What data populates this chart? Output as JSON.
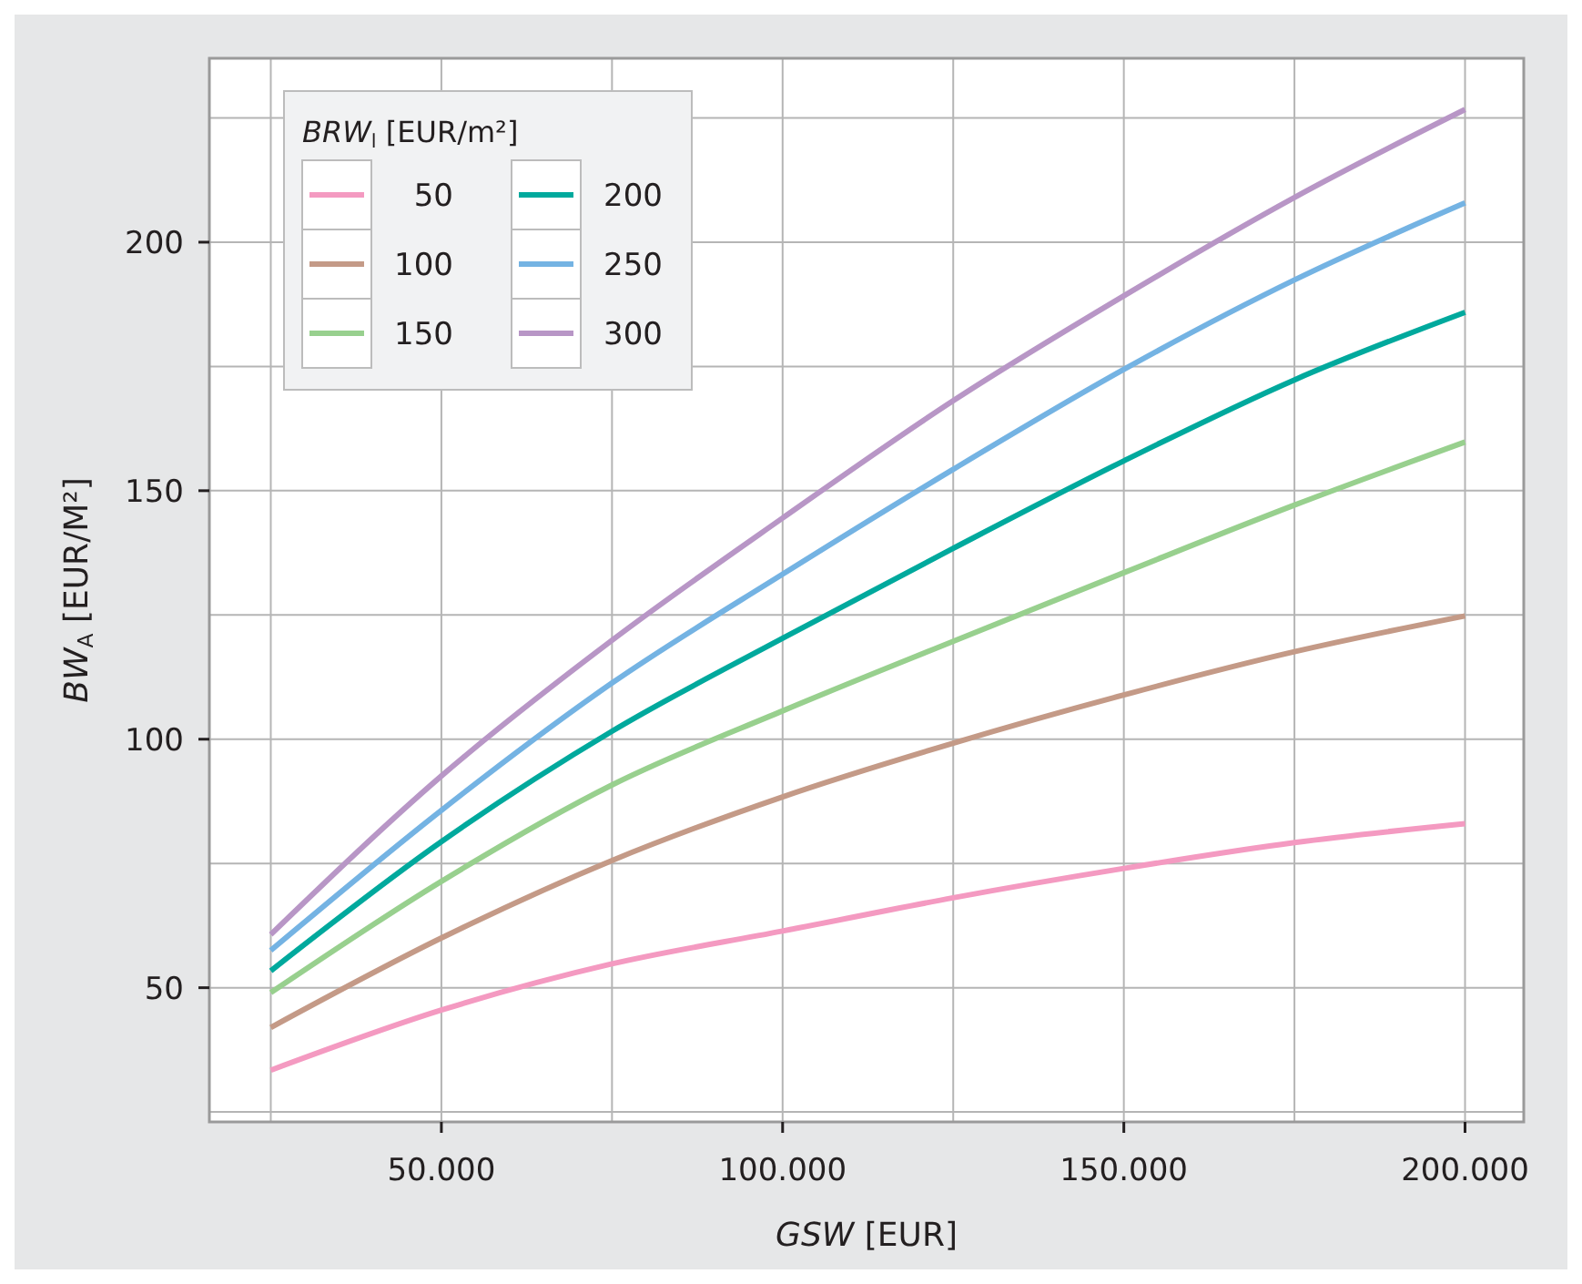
{
  "chart_data": {
    "type": "line",
    "xlabel": "GSW [EUR]",
    "ylabel": "BW$_{A}$ [EUR/M²]",
    "legend_title": "BRW$_{l}$ [EUR/m²]",
    "x": [
      25000,
      50000,
      75000,
      100000,
      125000,
      150000,
      175000,
      200000
    ],
    "series": [
      {
        "name": "50",
        "color": "#f49ac1",
        "values": [
          33.4,
          45.5,
          54.8,
          61.4,
          68.1,
          74,
          79.2,
          83
        ]
      },
      {
        "name": "100",
        "color": "#c49a87",
        "values": [
          42,
          60,
          75.6,
          88.4,
          99.2,
          108.9,
          117.6,
          124.8
        ]
      },
      {
        "name": "150",
        "color": "#98d08e",
        "values": [
          49,
          71.4,
          90.8,
          105.7,
          119.7,
          133.5,
          147.1,
          159.8
        ]
      },
      {
        "name": "200",
        "color": "#00a99d",
        "values": [
          53.4,
          79.4,
          101.6,
          120.3,
          138.4,
          156,
          172.3,
          185.9
        ]
      },
      {
        "name": "250",
        "color": "#74b3e3",
        "values": [
          57.5,
          85.7,
          111.3,
          133.2,
          154.3,
          174.4,
          192.4,
          207.9
        ]
      },
      {
        "name": "300",
        "color": "#b896c6",
        "values": [
          60.7,
          92.6,
          119.9,
          144.5,
          168.1,
          189.2,
          209,
          226.7
        ]
      }
    ],
    "xlim": [
      16000,
      208600
    ],
    "ylim": [
      23,
      237
    ],
    "xticks": [
      {
        "value": 25000,
        "label": null
      },
      {
        "value": 50000,
        "label": "50.000"
      },
      {
        "value": 75000,
        "label": null
      },
      {
        "value": 100000,
        "label": "100.000"
      },
      {
        "value": 125000,
        "label": null
      },
      {
        "value": 150000,
        "label": "150.000"
      },
      {
        "value": 175000,
        "label": null
      },
      {
        "value": 200000,
        "label": "200.000"
      }
    ],
    "yticks": [
      {
        "value": 25,
        "label": null
      },
      50,
      {
        "value": 75,
        "label": null
      },
      100,
      {
        "value": 125,
        "label": null
      },
      150,
      {
        "value": 175,
        "label": null
      },
      200,
      {
        "value": 225,
        "label": null
      }
    ],
    "grid": true,
    "legend": "top left",
    "marker": "none",
    "line_style": "solid"
  }
}
